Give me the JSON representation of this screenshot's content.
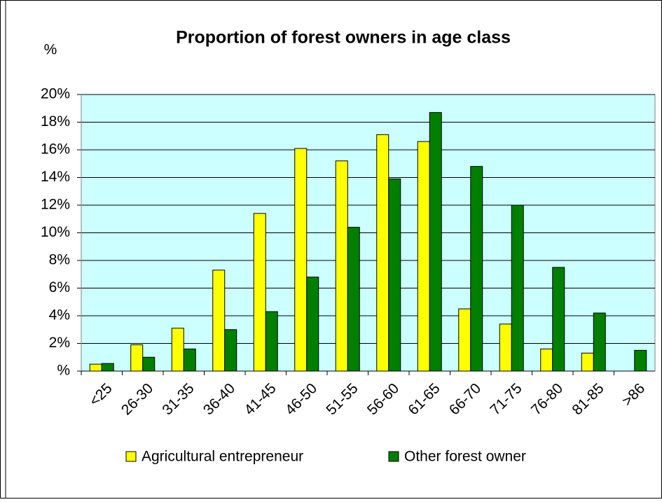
{
  "chart_data": {
    "type": "bar",
    "title": "Proportion of forest owners in age class",
    "y_label": "%",
    "categories": [
      "<25",
      "26-30",
      "31-35",
      "36-40",
      "41-45",
      "46-50",
      "51-55",
      "56-60",
      "61-65",
      "66-70",
      "71-75",
      "76-80",
      "81-85",
      ">86"
    ],
    "series": [
      {
        "name": "Agricultural entrepreneur",
        "color": "#ffff00",
        "values": [
          0.5,
          1.9,
          3.1,
          7.3,
          11.4,
          16.1,
          15.2,
          17.1,
          16.6,
          4.5,
          3.4,
          1.6,
          1.3,
          0
        ]
      },
      {
        "name": "Other forest owner",
        "color": "#007f00",
        "values": [
          0.55,
          1.0,
          1.6,
          3.0,
          4.3,
          6.8,
          10.4,
          13.9,
          18.7,
          14.8,
          12.0,
          7.5,
          4.2,
          1.5
        ]
      }
    ],
    "ylim": [
      0,
      20
    ],
    "yticks": [
      {
        "value": 0,
        "label": "%"
      },
      {
        "value": 2,
        "label": "2%"
      },
      {
        "value": 4,
        "label": "4%"
      },
      {
        "value": 6,
        "label": "6%"
      },
      {
        "value": 8,
        "label": "8%"
      },
      {
        "value": 10,
        "label": "10%"
      },
      {
        "value": 12,
        "label": "12%"
      },
      {
        "value": 14,
        "label": "14%"
      },
      {
        "value": 16,
        "label": "16%"
      },
      {
        "value": 18,
        "label": "18%"
      },
      {
        "value": 20,
        "label": "20%"
      }
    ],
    "grid": true,
    "legend": "bottom"
  }
}
